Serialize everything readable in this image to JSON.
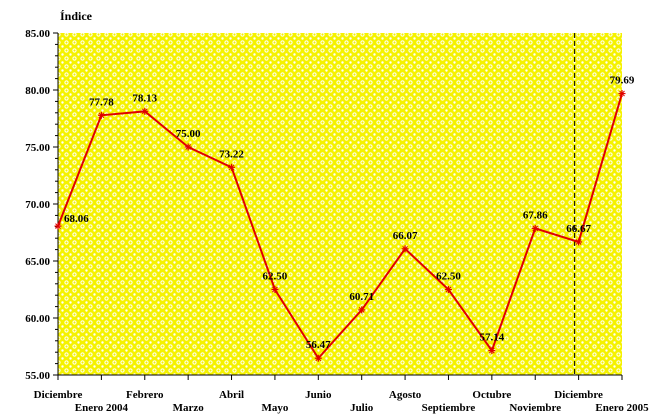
{
  "chart_data": {
    "type": "line",
    "ylabel": "Índice",
    "ylim": [
      55,
      85
    ],
    "yticks": [
      "55.00",
      "60.00",
      "65.00",
      "70.00",
      "75.00",
      "80.00",
      "85.00"
    ],
    "categories": [
      "Diciembre",
      "Enero 2004",
      "Febrero",
      "Marzo",
      "Abril",
      "Mayo",
      "Junio",
      "Julio",
      "Agosto",
      "Septiembre",
      "Octubre",
      "Noviembre",
      "Diciembre",
      "Enero 2005"
    ],
    "series": [
      {
        "values": [
          68.06,
          77.78,
          78.13,
          75.0,
          73.22,
          62.5,
          56.47,
          60.71,
          66.07,
          62.5,
          57.14,
          67.86,
          66.67,
          79.69
        ],
        "labels": [
          "68.06",
          "77.78",
          "78.13",
          "75.00",
          "73.22",
          "62.50",
          "56.47",
          "60.71",
          "66.07",
          "62.50",
          "57.14",
          "67.86",
          "66.67",
          "79.69"
        ],
        "color": "#e00000"
      }
    ],
    "divider_after_category": "Diciembre",
    "plot_background": "#f5f200",
    "pattern_color": "#ffffff",
    "grid": false
  }
}
